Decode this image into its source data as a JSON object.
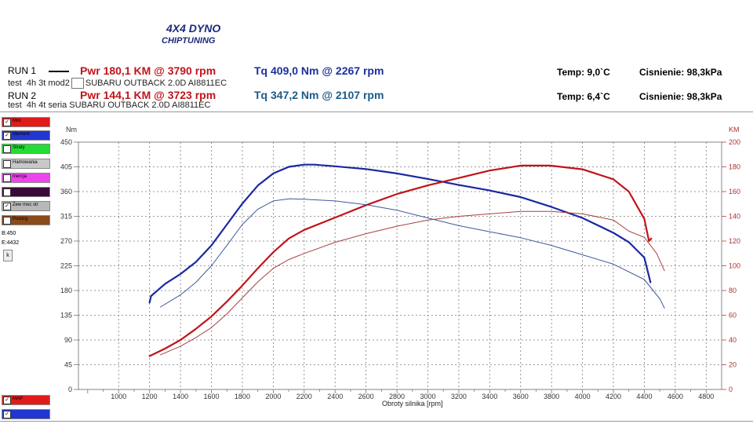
{
  "brand": {
    "line1": "4X4 DYNO",
    "line2": "CHIPTUNING"
  },
  "runs": [
    {
      "name": "RUN 1",
      "pwr": "Pwr  180,1 KM @ 3790 rpm",
      "tq": "Tq 409,0 Nm @ 2267 rpm",
      "tq_color": "#1c2f9c",
      "test_label": "test",
      "test_id": "4h 3t  mod2",
      "car": "SUBARU OUTBACK 2.0D AI8811EC",
      "temp": "Temp: 9,0`C",
      "cisnienie": "Cisnienie: 98,3kPa"
    },
    {
      "name": "RUN 2",
      "pwr": "Pwr  144,1 KM @ 3723 rpm",
      "tq": "Tq 347,2 Nm @ 2107 rpm",
      "tq_color": "#1a5a8a",
      "test_label": "test",
      "test_id": "4h 4t  seria",
      "car": "SUBARU OUTBACK 2.0D AI8811EC",
      "temp": "Temp: 6,4`C",
      "cisnienie": "Cisnienie: 98,3kPa"
    }
  ],
  "side_panel": [
    {
      "label": "Moc",
      "checked": true,
      "color": "#e11a1a"
    },
    {
      "label": "Moment",
      "checked": true,
      "color": "#2236d0"
    },
    {
      "label": "Straty",
      "checked": false,
      "color": "#22dd33"
    },
    {
      "label": "Hamowania",
      "checked": false,
      "color": "#c8c8c8"
    },
    {
      "label": "Inercja",
      "checked": false,
      "color": "#ee44ee"
    },
    {
      "label": "Podsumowanie",
      "checked": false,
      "color": "#3a0a3a"
    },
    {
      "label": "Zew moc str",
      "checked": true,
      "color": "#b8b8b8"
    },
    {
      "label": "Poslizg",
      "checked": false,
      "color": "#8a4a1a"
    }
  ],
  "side_info": {
    "b": "B:450",
    "e": "E:4432",
    "k": "k"
  },
  "side_bottom": [
    {
      "label": "MAP",
      "checked": true,
      "color": "#e11a1a"
    },
    {
      "label": "ATM",
      "checked": true,
      "color": "#2236d0"
    }
  ],
  "chart_data": {
    "type": "line",
    "xlabel": "Obroty silnika [rpm]",
    "ylabel_left": "Nm",
    "ylabel_right": "KM",
    "xlim": [
      740,
      4900
    ],
    "xticks": [
      1000,
      1200,
      1400,
      1600,
      1800,
      2000,
      2200,
      2400,
      2600,
      2800,
      3000,
      3200,
      3400,
      3600,
      3800,
      4000,
      4200,
      4400,
      4600,
      4800
    ],
    "ylim_left": [
      0,
      450
    ],
    "yticks_left": [
      0,
      45,
      90,
      135,
      180,
      225,
      270,
      315,
      360,
      405,
      450
    ],
    "ylim_right": [
      0,
      200
    ],
    "yticks_right": [
      0,
      20,
      40,
      60,
      80,
      100,
      120,
      140,
      160,
      180,
      200
    ],
    "grid": true,
    "series": [
      {
        "name": "RUN 1",
        "quantity": "Tq",
        "axis": "left",
        "color": "#1a28a0",
        "width": 2.2,
        "x": [
          1200,
          1210,
          1300,
          1400,
          1500,
          1600,
          1700,
          1800,
          1900,
          2000,
          2100,
          2200,
          2267,
          2400,
          2600,
          2800,
          3000,
          3200,
          3400,
          3600,
          3800,
          4000,
          4200,
          4300,
          4400,
          4440
        ],
        "y": [
          158,
          170,
          192,
          210,
          232,
          262,
          300,
          338,
          371,
          393,
          405,
          409,
          409,
          406,
          401,
          393,
          383,
          372,
          362,
          350,
          332,
          312,
          285,
          268,
          240,
          195
        ]
      },
      {
        "name": "RUN 1",
        "quantity": "Pwr",
        "axis": "right",
        "color": "#c0141a",
        "width": 2.2,
        "x": [
          1200,
          1300,
          1400,
          1500,
          1600,
          1700,
          1800,
          1900,
          2000,
          2100,
          2200,
          2400,
          2600,
          2800,
          3000,
          3200,
          3400,
          3600,
          3790,
          4000,
          4200,
          4300,
          4400,
          4430,
          4445
        ],
        "y": [
          27,
          33,
          40,
          49,
          59,
          71,
          84,
          98,
          111,
          122,
          129,
          139,
          149,
          158,
          165,
          171,
          177,
          181,
          181,
          178,
          170,
          160,
          138,
          120,
          122
        ]
      },
      {
        "name": "RUN 2",
        "quantity": "Tq",
        "axis": "left",
        "color": "#3c5a9a",
        "width": 1,
        "x": [
          1270,
          1400,
          1500,
          1600,
          1700,
          1800,
          1900,
          2000,
          2107,
          2200,
          2400,
          2600,
          2800,
          3000,
          3200,
          3400,
          3600,
          3800,
          4000,
          4200,
          4400,
          4500,
          4530
        ],
        "y": [
          150,
          172,
          195,
          225,
          262,
          300,
          328,
          343,
          347,
          346,
          343,
          336,
          326,
          312,
          298,
          287,
          276,
          262,
          245,
          228,
          200,
          165,
          148
        ]
      },
      {
        "name": "RUN 2",
        "quantity": "Pwr",
        "axis": "right",
        "color": "#a84040",
        "width": 1,
        "x": [
          1270,
          1400,
          1500,
          1600,
          1700,
          1800,
          1900,
          2000,
          2100,
          2200,
          2400,
          2600,
          2800,
          3000,
          3200,
          3400,
          3600,
          3723,
          3800,
          4000,
          4200,
          4300,
          4400,
          4480,
          4530
        ],
        "y": [
          28,
          35,
          42,
          50,
          61,
          74,
          87,
          98,
          105,
          110,
          119,
          126,
          132,
          137,
          140,
          142,
          144,
          144,
          144,
          142,
          137,
          128,
          123,
          110,
          96
        ]
      }
    ]
  }
}
